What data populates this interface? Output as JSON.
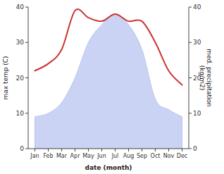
{
  "chart_data": {
    "type": "line",
    "x_label": "date (month)",
    "y_label": "max temp (C)",
    "y2_label": "med. precipitation\n(kg/m2)",
    "categories": [
      "Jan",
      "Feb",
      "Mar",
      "Apr",
      "May",
      "Jun",
      "Jul",
      "Aug",
      "Sep",
      "Oct",
      "Nov",
      "Dec"
    ],
    "series": [
      {
        "type": "area",
        "axis": "y2",
        "color": "#b8c4ef",
        "values": [
          9,
          10,
          13,
          20,
          30,
          35,
          38,
          35,
          28,
          14,
          11,
          9
        ]
      },
      {
        "type": "line",
        "color": "#cc3333",
        "values": [
          22,
          24,
          28,
          39,
          37,
          36,
          38,
          36,
          36,
          30,
          22,
          18
        ]
      }
    ],
    "ylim": [
      0,
      40
    ],
    "yticks": [
      0,
      10,
      20,
      30,
      40
    ],
    "y2lim": [
      0,
      40
    ],
    "y2ticks": [
      0,
      10,
      20,
      30,
      40
    ],
    "grid": false
  }
}
